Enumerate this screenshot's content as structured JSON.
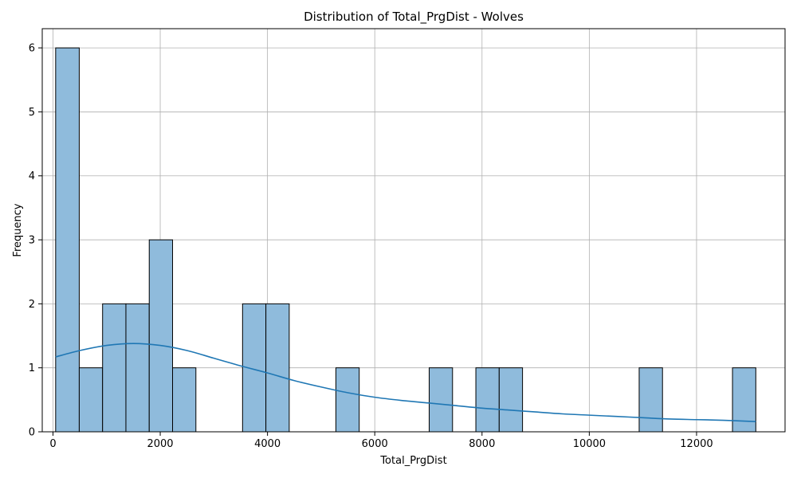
{
  "chart_data": {
    "type": "bar",
    "title": "Distribution of Total_PrgDist - Wolves",
    "xlabel": "Total_PrgDist",
    "ylabel": "Frequency",
    "xlim": [
      -200,
      13650
    ],
    "ylim": [
      0,
      6.3
    ],
    "xticks": [
      0,
      2000,
      4000,
      6000,
      8000,
      10000,
      12000
    ],
    "yticks": [
      0,
      1,
      2,
      3,
      4,
      5,
      6
    ],
    "grid": true,
    "bar_color": "#8fbbdc",
    "edge_color": "#000000",
    "kde_color": "#1f77b4",
    "bins": [
      {
        "x0": 50,
        "x1": 490,
        "count": 6
      },
      {
        "x0": 490,
        "x1": 925,
        "count": 1
      },
      {
        "x0": 925,
        "x1": 1360,
        "count": 2
      },
      {
        "x0": 1360,
        "x1": 1795,
        "count": 2
      },
      {
        "x0": 1795,
        "x1": 2230,
        "count": 3
      },
      {
        "x0": 2230,
        "x1": 2665,
        "count": 1
      },
      {
        "x0": 3535,
        "x1": 3970,
        "count": 2
      },
      {
        "x0": 3970,
        "x1": 4405,
        "count": 2
      },
      {
        "x0": 5275,
        "x1": 5710,
        "count": 1
      },
      {
        "x0": 7015,
        "x1": 7450,
        "count": 1
      },
      {
        "x0": 7885,
        "x1": 8320,
        "count": 1
      },
      {
        "x0": 8320,
        "x1": 8755,
        "count": 1
      },
      {
        "x0": 10930,
        "x1": 11365,
        "count": 1
      },
      {
        "x0": 12670,
        "x1": 13105,
        "count": 1
      }
    ],
    "kde": {
      "x": [
        50,
        500,
        1000,
        1500,
        2000,
        2500,
        3000,
        3500,
        4000,
        4500,
        5000,
        5500,
        6000,
        6500,
        7000,
        7500,
        8000,
        8500,
        9000,
        9500,
        10000,
        10500,
        11000,
        11500,
        12000,
        12500,
        13105
      ],
      "y": [
        1.17,
        1.27,
        1.35,
        1.38,
        1.35,
        1.27,
        1.15,
        1.03,
        0.92,
        0.8,
        0.7,
        0.61,
        0.54,
        0.49,
        0.45,
        0.41,
        0.37,
        0.34,
        0.31,
        0.28,
        0.26,
        0.24,
        0.22,
        0.2,
        0.19,
        0.18,
        0.16
      ]
    }
  }
}
